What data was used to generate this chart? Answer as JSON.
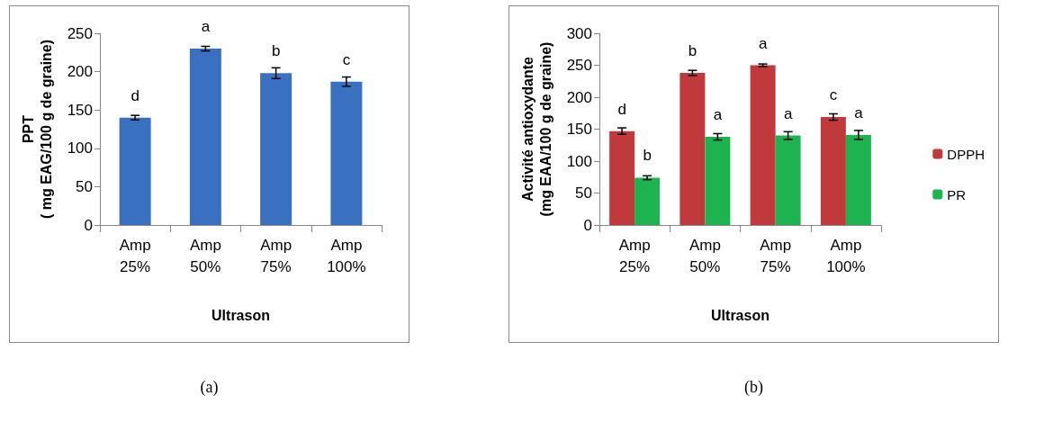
{
  "chart_data": [
    {
      "type": "bar",
      "xlabel": "Ultrason",
      "ylabel": "PPT\n( mg EAG/100 g de graine)",
      "categories": [
        "Amp\n25%",
        "Amp\n50%",
        "Amp\n75%",
        "Amp\n100%"
      ],
      "ylim": [
        0,
        250
      ],
      "yticks": [
        0,
        50,
        100,
        150,
        200,
        250
      ],
      "annotations": [
        "(a)"
      ],
      "series": [
        {
          "color": "#3a70c0",
          "values": [
            140,
            230,
            198,
            187
          ],
          "errors": [
            3,
            3,
            7,
            6
          ],
          "value_labels": [
            "d",
            "a",
            "b",
            "c"
          ]
        }
      ]
    },
    {
      "type": "bar",
      "xlabel": "Ultrason",
      "ylabel": "Activité antioxydante\n(mg EAA/100 g de graine)",
      "categories": [
        "Amp\n25%",
        "Amp\n50%",
        "Amp\n75%",
        "Amp\n100%"
      ],
      "ylim": [
        0,
        300
      ],
      "yticks": [
        0,
        50,
        100,
        150,
        200,
        250,
        300
      ],
      "legend": "right",
      "annotations": [
        "(b)"
      ],
      "series": [
        {
          "name": "DPPH",
          "color": "#c0393b",
          "values": [
            147,
            238,
            250,
            169
          ],
          "errors": [
            5,
            4,
            2,
            5
          ],
          "value_labels": [
            "d",
            "b",
            "a",
            "c"
          ]
        },
        {
          "name": "PR",
          "color": "#1db350",
          "values": [
            74,
            138,
            140,
            141
          ],
          "errors": [
            3,
            5,
            6,
            7
          ],
          "value_labels": [
            "b",
            "a",
            "a",
            "a"
          ]
        }
      ]
    }
  ]
}
